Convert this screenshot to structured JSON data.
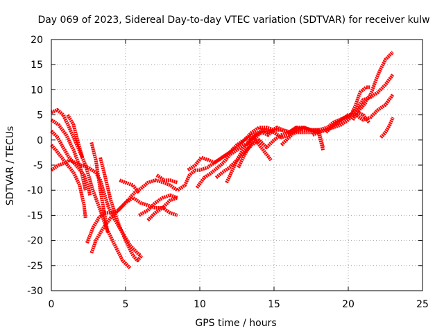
{
  "chart_data": {
    "type": "scatter",
    "title": "Day 069 of 2023, Sidereal Day-to-day VTEC variation (SDTVAR) for receiver kulw",
    "xlabel": "GPS time / hours",
    "ylabel": "SDTVAR / TECUs",
    "xlim": [
      0,
      25
    ],
    "ylim": [
      -30,
      20
    ],
    "xticks": [
      0,
      5,
      10,
      15,
      20,
      25
    ],
    "yticks": [
      -30,
      -25,
      -20,
      -15,
      -10,
      -5,
      0,
      5,
      10,
      15,
      20
    ],
    "grid": true,
    "marker_color": "#ff0000",
    "series": [
      {
        "name": "s1",
        "points": [
          [
            0.0,
            -1.0
          ],
          [
            0.3,
            -2.0
          ],
          [
            0.7,
            -3.5
          ],
          [
            1.1,
            -5.0
          ],
          [
            1.5,
            -6.5
          ],
          [
            1.9,
            -9.0
          ],
          [
            2.2,
            -13.0
          ],
          [
            2.3,
            -15.5
          ]
        ]
      },
      {
        "name": "s2",
        "points": [
          [
            0.0,
            4.0
          ],
          [
            0.5,
            3.0
          ],
          [
            1.0,
            1.0
          ],
          [
            1.5,
            -2.0
          ],
          [
            2.0,
            -6.0
          ],
          [
            2.3,
            -10.0
          ]
        ]
      },
      {
        "name": "s3",
        "points": [
          [
            0.0,
            1.8
          ],
          [
            0.4,
            0.6
          ],
          [
            0.8,
            -1.5
          ],
          [
            1.2,
            -3.5
          ],
          [
            1.8,
            -5.5
          ],
          [
            2.2,
            -7.0
          ],
          [
            2.5,
            -9.5
          ],
          [
            2.6,
            -11.0
          ]
        ]
      },
      {
        "name": "s4",
        "points": [
          [
            0.0,
            5.5
          ],
          [
            0.4,
            6.0
          ],
          [
            0.8,
            5.0
          ],
          [
            1.2,
            2.5
          ],
          [
            1.8,
            -1.5
          ],
          [
            2.3,
            -5.0
          ],
          [
            2.8,
            -10.0
          ],
          [
            3.3,
            -14.0
          ],
          [
            3.7,
            -17.5
          ],
          [
            4.2,
            -20.5
          ],
          [
            4.8,
            -24.0
          ],
          [
            5.3,
            -25.5
          ]
        ]
      },
      {
        "name": "s5",
        "points": [
          [
            0.0,
            -6.0
          ],
          [
            0.5,
            -5.0
          ],
          [
            1.0,
            -4.5
          ],
          [
            1.2,
            -4.0
          ],
          [
            1.6,
            -4.5
          ],
          [
            2.0,
            -5.0
          ],
          [
            2.5,
            -5.5
          ],
          [
            3.0,
            -6.5
          ],
          [
            3.3,
            -8.0
          ],
          [
            3.5,
            -10.0
          ],
          [
            3.8,
            -13.0
          ],
          [
            4.2,
            -15.5
          ],
          [
            4.8,
            -18.5
          ],
          [
            5.3,
            -21.0
          ],
          [
            5.8,
            -22.5
          ],
          [
            6.0,
            -23.0
          ]
        ]
      },
      {
        "name": "s6",
        "points": [
          [
            1.1,
            5.0
          ],
          [
            1.5,
            3.0
          ],
          [
            1.8,
            -0.5
          ],
          [
            2.1,
            -3.5
          ]
        ]
      },
      {
        "name": "s7",
        "points": [
          [
            2.4,
            -20.5
          ],
          [
            2.8,
            -17.5
          ],
          [
            3.2,
            -15.5
          ],
          [
            3.6,
            -14.5
          ],
          [
            4.0,
            -14.5
          ],
          [
            4.5,
            -14.0
          ],
          [
            5.0,
            -12.5
          ],
          [
            5.6,
            -10.5
          ],
          [
            6.1,
            -9.5
          ],
          [
            6.5,
            -8.5
          ],
          [
            7.0,
            -8.0
          ],
          [
            7.6,
            -8.5
          ],
          [
            8.0,
            -9.0
          ],
          [
            8.5,
            -10.0
          ],
          [
            9.0,
            -9.0
          ],
          [
            9.3,
            -7.0
          ],
          [
            9.7,
            -6.0
          ],
          [
            10.0,
            -6.0
          ],
          [
            10.5,
            -5.5
          ],
          [
            11.0,
            -4.5
          ],
          [
            11.5,
            -3.5
          ],
          [
            12.0,
            -2.5
          ],
          [
            12.5,
            -1.5
          ],
          [
            13.0,
            0.0
          ],
          [
            13.5,
            1.5
          ],
          [
            14.0,
            2.5
          ],
          [
            14.5,
            2.5
          ],
          [
            15.0,
            2.0
          ],
          [
            15.5,
            2.0
          ],
          [
            16.0,
            1.5
          ],
          [
            16.5,
            2.5
          ],
          [
            17.0,
            2.5
          ],
          [
            17.5,
            2.0
          ],
          [
            18.0,
            2.0
          ],
          [
            18.3,
            -1.5
          ]
        ]
      },
      {
        "name": "s8",
        "points": [
          [
            2.7,
            -0.5
          ],
          [
            3.0,
            -4.0
          ],
          [
            3.3,
            -10.0
          ],
          [
            3.6,
            -15.0
          ],
          [
            3.8,
            -18.5
          ]
        ]
      },
      {
        "name": "s9",
        "points": [
          [
            2.7,
            -22.5
          ],
          [
            3.0,
            -20.0
          ],
          [
            3.5,
            -17.5
          ],
          [
            4.0,
            -15.5
          ],
          [
            4.5,
            -14.0
          ],
          [
            5.0,
            -12.5
          ],
          [
            5.5,
            -11.5
          ],
          [
            6.0,
            -12.5
          ],
          [
            6.5,
            -13.0
          ],
          [
            7.0,
            -13.5
          ],
          [
            7.5,
            -13.5
          ],
          [
            8.0,
            -14.5
          ],
          [
            8.5,
            -15.0
          ]
        ]
      },
      {
        "name": "s10",
        "points": [
          [
            3.3,
            -3.5
          ],
          [
            3.6,
            -7.0
          ],
          [
            4.0,
            -12.0
          ],
          [
            4.5,
            -16.5
          ],
          [
            5.0,
            -20.0
          ],
          [
            5.5,
            -23.0
          ],
          [
            5.8,
            -24.0
          ],
          [
            6.1,
            -23.0
          ]
        ]
      },
      {
        "name": "s11",
        "points": [
          [
            4.6,
            -8.0
          ],
          [
            5.0,
            -8.5
          ],
          [
            5.5,
            -9.0
          ],
          [
            5.9,
            -10.5
          ]
        ]
      },
      {
        "name": "s12",
        "points": [
          [
            5.9,
            -15.0
          ],
          [
            6.5,
            -14.0
          ],
          [
            7.0,
            -12.5
          ],
          [
            7.5,
            -11.5
          ],
          [
            8.0,
            -11.0
          ],
          [
            8.5,
            -11.5
          ]
        ]
      },
      {
        "name": "s13",
        "points": [
          [
            6.5,
            -16.0
          ],
          [
            7.0,
            -14.5
          ],
          [
            7.5,
            -13.5
          ],
          [
            8.0,
            -12.0
          ],
          [
            8.5,
            -11.5
          ]
        ]
      },
      {
        "name": "s14",
        "points": [
          [
            7.1,
            -7.0
          ],
          [
            7.6,
            -8.0
          ],
          [
            8.0,
            -8.0
          ],
          [
            8.5,
            -8.5
          ]
        ]
      },
      {
        "name": "s15",
        "points": [
          [
            9.2,
            -6.0
          ],
          [
            9.7,
            -5.0
          ],
          [
            10.1,
            -3.5
          ],
          [
            10.6,
            -4.0
          ],
          [
            11.0,
            -4.5
          ],
          [
            11.5,
            -3.5
          ],
          [
            12.0,
            -2.5
          ],
          [
            12.5,
            -1.0
          ],
          [
            13.0,
            0.0
          ],
          [
            13.5,
            1.0
          ],
          [
            14.0,
            1.5
          ],
          [
            14.5,
            2.0
          ],
          [
            15.0,
            1.5
          ],
          [
            15.5,
            0.5
          ],
          [
            16.0,
            1.0
          ],
          [
            16.5,
            1.5
          ],
          [
            17.0,
            1.5
          ],
          [
            17.5,
            1.5
          ],
          [
            18.0,
            1.5
          ],
          [
            18.3,
            -2.0
          ]
        ]
      },
      {
        "name": "s16",
        "points": [
          [
            9.8,
            -9.5
          ],
          [
            10.3,
            -7.5
          ],
          [
            10.8,
            -6.5
          ],
          [
            11.2,
            -5.5
          ],
          [
            11.6,
            -4.5
          ],
          [
            12.0,
            -3.0
          ],
          [
            12.5,
            -2.0
          ],
          [
            13.0,
            -1.0
          ],
          [
            13.4,
            -0.5
          ],
          [
            13.8,
            1.0
          ],
          [
            14.2,
            2.0
          ],
          [
            14.6,
            1.5
          ],
          [
            15.2,
            2.5
          ],
          [
            15.6,
            2.0
          ],
          [
            16.2,
            1.5
          ],
          [
            16.8,
            2.0
          ],
          [
            17.4,
            2.0
          ],
          [
            18.0,
            2.0
          ],
          [
            18.6,
            2.5
          ],
          [
            19.0,
            3.5
          ],
          [
            19.4,
            4.0
          ],
          [
            19.8,
            4.5
          ],
          [
            20.2,
            5.0
          ],
          [
            20.5,
            7.0
          ],
          [
            20.8,
            9.5
          ],
          [
            21.2,
            10.5
          ],
          [
            21.5,
            10.5
          ]
        ]
      },
      {
        "name": "s17",
        "points": [
          [
            11.1,
            -7.5
          ],
          [
            11.5,
            -6.5
          ],
          [
            12.0,
            -5.5
          ],
          [
            12.5,
            -4.0
          ],
          [
            13.0,
            -2.5
          ],
          [
            13.5,
            -1.0
          ],
          [
            14.0,
            0.0
          ],
          [
            14.5,
            -1.5
          ],
          [
            15.0,
            0.0
          ],
          [
            15.5,
            1.0
          ],
          [
            16.0,
            1.5
          ],
          [
            16.5,
            2.5
          ],
          [
            17.0,
            2.0
          ],
          [
            17.5,
            2.0
          ],
          [
            18.0,
            1.5
          ],
          [
            18.5,
            2.0
          ],
          [
            19.0,
            3.0
          ],
          [
            19.5,
            3.5
          ],
          [
            20.0,
            4.5
          ],
          [
            20.5,
            6.0
          ],
          [
            21.0,
            8.0
          ],
          [
            21.5,
            8.5
          ],
          [
            22.0,
            9.5
          ],
          [
            22.5,
            11.0
          ],
          [
            23.0,
            13.0
          ]
        ]
      },
      {
        "name": "s18",
        "points": [
          [
            11.8,
            -8.5
          ],
          [
            12.2,
            -6.0
          ],
          [
            12.6,
            -3.5
          ],
          [
            13.0,
            -1.5
          ],
          [
            13.4,
            0.0
          ],
          [
            13.8,
            1.0
          ],
          [
            14.2,
            1.5
          ],
          [
            14.6,
            1.0
          ],
          [
            15.0,
            2.0
          ]
        ]
      },
      {
        "name": "s19",
        "points": [
          [
            12.6,
            -5.5
          ],
          [
            13.0,
            -3.0
          ],
          [
            13.4,
            -1.0
          ],
          [
            13.8,
            0.5
          ],
          [
            14.2,
            2.0
          ],
          [
            14.6,
            2.0
          ]
        ]
      },
      {
        "name": "s20",
        "points": [
          [
            13.2,
            -0.5
          ],
          [
            13.6,
            0.5
          ],
          [
            14.0,
            -1.0
          ],
          [
            14.4,
            -2.5
          ],
          [
            14.8,
            -4.0
          ]
        ]
      },
      {
        "name": "s21",
        "points": [
          [
            15.5,
            -1.0
          ],
          [
            16.0,
            0.5
          ],
          [
            16.5,
            2.0
          ],
          [
            17.0,
            2.5
          ],
          [
            17.5,
            2.0
          ]
        ]
      },
      {
        "name": "s22",
        "points": [
          [
            17.6,
            1.0
          ],
          [
            18.0,
            1.5
          ],
          [
            18.5,
            2.0
          ],
          [
            19.0,
            2.5
          ],
          [
            19.5,
            3.0
          ],
          [
            20.0,
            4.0
          ],
          [
            20.5,
            5.5
          ],
          [
            21.0,
            7.0
          ],
          [
            21.5,
            9.0
          ],
          [
            22.0,
            13.0
          ],
          [
            22.5,
            16.0
          ],
          [
            23.0,
            17.5
          ]
        ]
      },
      {
        "name": "s23",
        "points": [
          [
            18.5,
            1.5
          ],
          [
            19.0,
            3.0
          ],
          [
            19.5,
            4.0
          ],
          [
            20.0,
            5.0
          ],
          [
            20.5,
            5.0
          ],
          [
            21.0,
            4.0
          ],
          [
            21.5,
            4.5
          ],
          [
            22.0,
            6.0
          ],
          [
            22.5,
            7.0
          ],
          [
            23.0,
            9.0
          ]
        ]
      },
      {
        "name": "s24",
        "points": [
          [
            20.3,
            4.0
          ],
          [
            20.6,
            5.5
          ],
          [
            20.9,
            6.5
          ],
          [
            21.2,
            7.5
          ]
        ]
      },
      {
        "name": "s25",
        "points": [
          [
            20.6,
            5.5
          ],
          [
            21.0,
            5.0
          ],
          [
            21.4,
            3.5
          ]
        ]
      },
      {
        "name": "s26",
        "points": [
          [
            22.2,
            0.5
          ],
          [
            22.5,
            1.5
          ],
          [
            22.8,
            3.0
          ],
          [
            23.0,
            4.5
          ]
        ]
      }
    ]
  }
}
